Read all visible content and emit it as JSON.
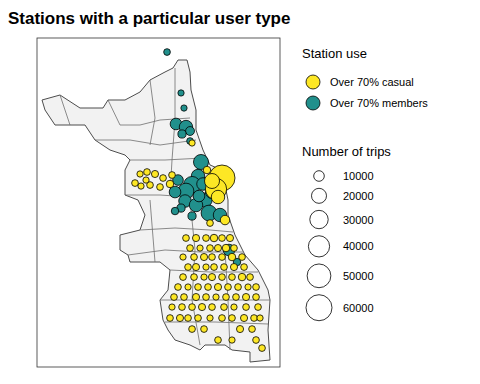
{
  "chart_data": {
    "type": "bubble_map",
    "title": "Stations with a particular user type",
    "legend_title": "Station use",
    "xlim": [
      -87.95,
      -87.5
    ],
    "ylim": [
      41.63,
      42.08
    ],
    "series": [
      {
        "name": "Over 70% casual",
        "color": "#fde725",
        "x": [
          -87.6074,
          -87.6185,
          -87.6259,
          -87.6148,
          -87.6018,
          -87.6296,
          -87.6352,
          -87.6629,
          -87.7685,
          -87.7592,
          -87.7463,
          -87.7315,
          -87.7166,
          -87.7574,
          -87.7407,
          -87.7222,
          -87.7037,
          -87.7481,
          -87.7,
          -87.6741,
          -87.6555,
          -87.637,
          -87.6222,
          -87.6074,
          -87.5926,
          -87.6666,
          -87.6481,
          -87.6296,
          -87.6148,
          -87.6,
          -87.5852,
          -87.6796,
          -87.6592,
          -87.6407,
          -87.6259,
          -87.6074,
          -87.5889,
          -87.5703,
          -87.6703,
          -87.6555,
          -87.637,
          -87.6222,
          -87.6037,
          -87.5852,
          -87.5666,
          -87.6796,
          -87.6592,
          -87.6407,
          -87.6259,
          -87.6074,
          -87.5889,
          -87.5703,
          -87.5555,
          -87.6889,
          -87.6703,
          -87.6518,
          -87.6333,
          -87.6148,
          -87.5963,
          -87.5777,
          -87.5592,
          -87.5444,
          -87.6963,
          -87.6778,
          -87.6555,
          -87.637,
          -87.6185,
          -87.6,
          -87.5815,
          -87.5629,
          -87.5444,
          -87.7,
          -87.6815,
          -87.6629,
          -87.6444,
          -87.6259,
          -87.6037,
          -87.5852,
          -87.5629,
          -87.5407,
          -87.7037,
          -87.6852,
          -87.6703,
          -87.6518,
          -87.6296,
          -87.6074,
          -87.5889,
          -87.5666,
          -87.5481,
          -87.537,
          -87.6629,
          -87.6407,
          -87.574,
          -87.5518,
          -87.6148,
          -87.5889,
          -87.5444,
          -87.5333
        ],
        "y": [
          41.8885,
          41.8734,
          41.8844,
          41.8625,
          41.831,
          41.8269,
          41.8994,
          41.9364,
          41.8816,
          41.894,
          41.8967,
          41.894,
          41.8885,
          41.8775,
          41.8789,
          41.8762,
          41.8803,
          41.8857,
          41.8926,
          41.8064,
          41.8064,
          41.8064,
          41.8064,
          41.8064,
          41.8064,
          41.7927,
          41.7927,
          41.7927,
          41.7927,
          41.7927,
          41.7927,
          41.7804,
          41.7804,
          41.7804,
          41.7804,
          41.7804,
          41.7804,
          41.7804,
          41.7667,
          41.7667,
          41.7667,
          41.7667,
          41.7667,
          41.7667,
          41.7667,
          41.753,
          41.753,
          41.753,
          41.753,
          41.753,
          41.753,
          41.753,
          41.753,
          41.7394,
          41.7394,
          41.7394,
          41.7394,
          41.7394,
          41.7394,
          41.7394,
          41.7394,
          41.7394,
          41.7257,
          41.7257,
          41.7257,
          41.7257,
          41.7257,
          41.7257,
          41.7257,
          41.7257,
          41.7257,
          41.712,
          41.712,
          41.712,
          41.712,
          41.712,
          41.712,
          41.712,
          41.712,
          41.712,
          41.697,
          41.697,
          41.697,
          41.697,
          41.697,
          41.697,
          41.697,
          41.697,
          41.697,
          41.697,
          41.6819,
          41.6819,
          41.6819,
          41.6819,
          41.6669,
          41.6669,
          41.6669,
          41.6559
        ],
        "size": [
          60000,
          40000,
          20000,
          16000,
          8000,
          4000,
          5000,
          3500,
          4000,
          3500,
          4000,
          4500,
          4000,
          3500,
          4000,
          4000,
          5000,
          3500,
          4000,
          4000,
          4500,
          4000,
          5000,
          4000,
          4500,
          4000,
          3500,
          4000,
          4500,
          5000,
          4000,
          3500,
          4000,
          4500,
          4000,
          4000,
          5000,
          4000,
          4000,
          4500,
          3500,
          4000,
          4000,
          4500,
          4000,
          4000,
          4000,
          3500,
          4500,
          4000,
          4000,
          5000,
          4000,
          4000,
          3500,
          4000,
          4000,
          4500,
          4000,
          4000,
          3500,
          4000,
          4000,
          4000,
          4500,
          4000,
          3500,
          4000,
          4000,
          4500,
          4000,
          3500,
          4000,
          4000,
          4500,
          4000,
          4000,
          3500,
          4000,
          4000,
          4000,
          4500,
          4000,
          4000,
          3500,
          4000,
          4000,
          4500,
          4000,
          3500,
          4000,
          4000,
          4500,
          4000,
          4000,
          3500,
          4000,
          4000
        ]
      },
      {
        "name": "Over 70% members",
        "color": "#21908c",
        "x": [
          -87.7092,
          -87.6833,
          -87.6778,
          -87.6926,
          -87.6741,
          -87.6666,
          -87.6815,
          -87.6666,
          -87.6463,
          -87.6518,
          -87.6629,
          -87.6426,
          -87.6741,
          -87.6944,
          -87.6759,
          -87.6389,
          -87.6555,
          -87.6315,
          -87.6111,
          -87.6833,
          -87.6944,
          -87.6629,
          -87.5944,
          -87.5796,
          -87.6259,
          -87.65,
          -87.6889
        ],
        "y": [
          42.0608,
          42.0048,
          41.9842,
          41.9624,
          41.9582,
          41.9528,
          41.9487,
          41.9391,
          41.9104,
          41.8912,
          41.8789,
          41.8803,
          41.8707,
          41.8693,
          41.857,
          41.8584,
          41.8515,
          41.8406,
          41.8379,
          41.8474,
          41.8433,
          41.8365,
          41.79,
          41.7736,
          41.8693,
          41.8639,
          41.8857
        ],
        "size": [
          4000,
          3500,
          3500,
          12000,
          16000,
          7000,
          6000,
          4000,
          20000,
          16000,
          26000,
          14000,
          22000,
          12000,
          14000,
          18000,
          16000,
          22000,
          16000,
          6000,
          5000,
          6000,
          12000,
          5000,
          15000,
          12000,
          10000
        ]
      }
    ],
    "size_legend": {
      "title": "Number of trips",
      "values": [
        10000,
        20000,
        30000,
        40000,
        50000,
        60000
      ]
    }
  }
}
